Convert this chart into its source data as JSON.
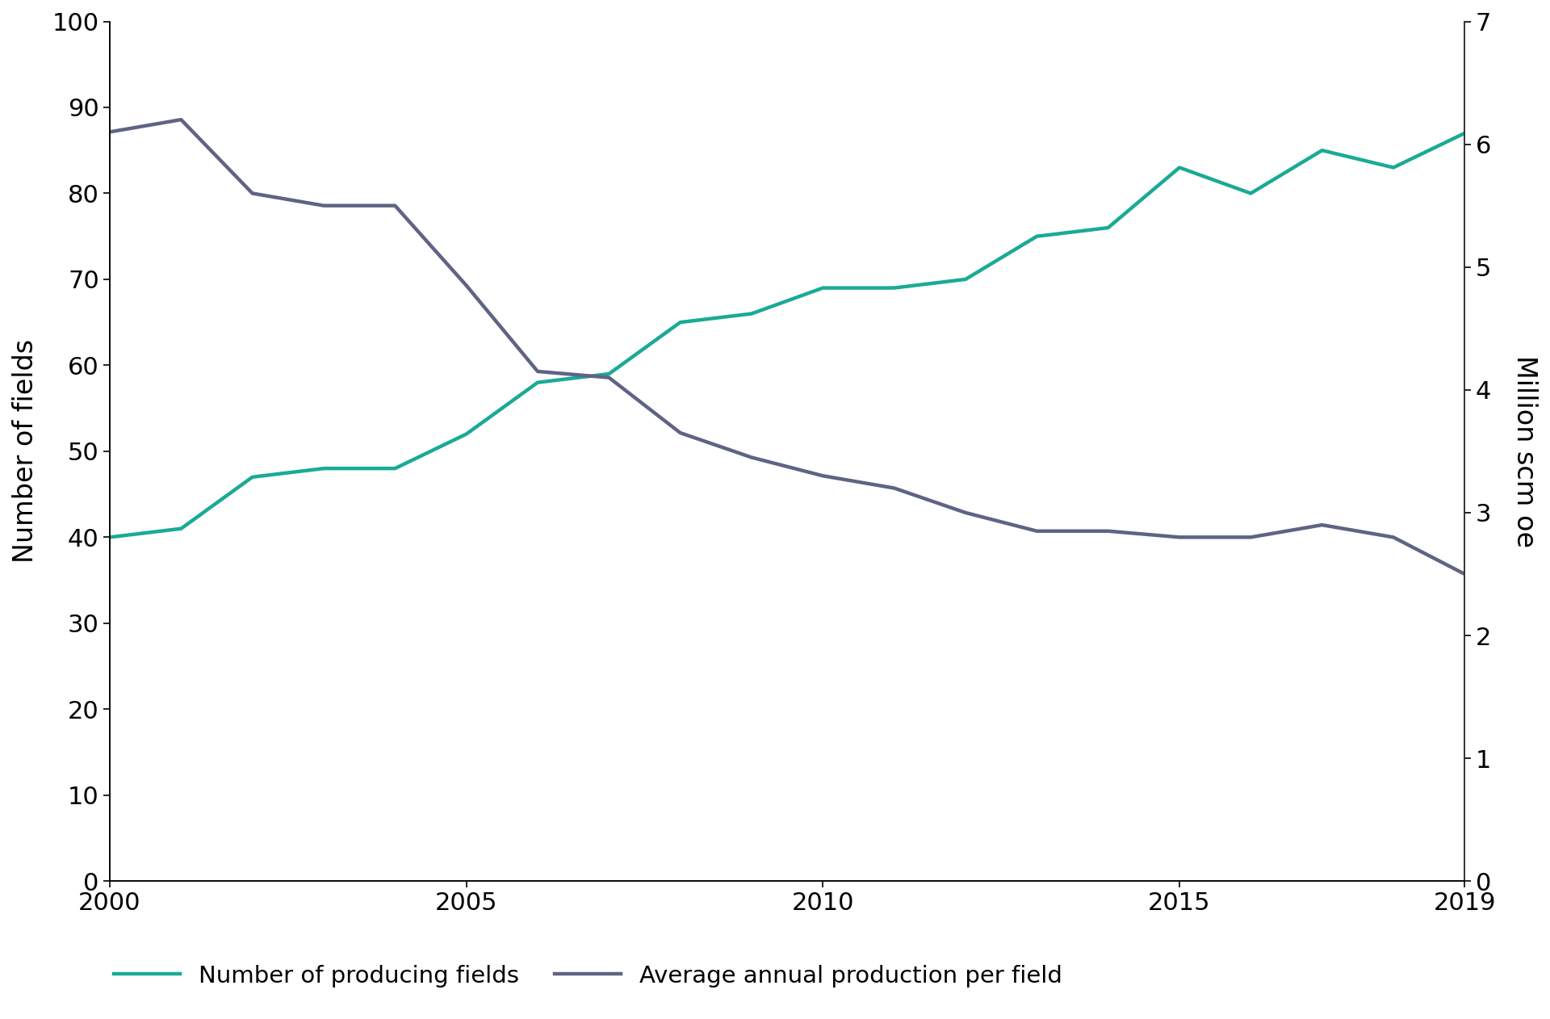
{
  "years": [
    2000,
    2001,
    2002,
    2003,
    2004,
    2005,
    2006,
    2007,
    2008,
    2009,
    2010,
    2011,
    2012,
    2013,
    2014,
    2015,
    2016,
    2017,
    2018,
    2019
  ],
  "num_fields": [
    40,
    41,
    47,
    48,
    48,
    52,
    58,
    59,
    65,
    66,
    69,
    69,
    70,
    75,
    76,
    83,
    80,
    85,
    83,
    87
  ],
  "avg_production": [
    6.1,
    6.2,
    5.6,
    5.5,
    5.5,
    4.85,
    4.15,
    4.1,
    3.65,
    3.45,
    3.3,
    3.2,
    3.0,
    2.85,
    2.85,
    2.8,
    2.8,
    2.9,
    2.8,
    2.5
  ],
  "color_fields": "#1aaa96",
  "color_production": "#5f6384",
  "ylabel_left": "Number of fields",
  "ylabel_right": "Million scm oe",
  "ylim_left": [
    0,
    100
  ],
  "ylim_right": [
    0,
    7
  ],
  "yticks_left": [
    0,
    10,
    20,
    30,
    40,
    50,
    60,
    70,
    80,
    90,
    100
  ],
  "yticks_right": [
    0,
    1,
    2,
    3,
    4,
    5,
    6,
    7
  ],
  "xticks": [
    2000,
    2005,
    2010,
    2015,
    2019
  ],
  "xlim": [
    2000,
    2019
  ],
  "legend_fields": "Number of producing fields",
  "legend_production": "Average annual production per field",
  "line_width": 3.2,
  "background_color": "#ffffff",
  "tick_fontsize": 22,
  "label_fontsize": 24,
  "legend_fontsize": 21
}
